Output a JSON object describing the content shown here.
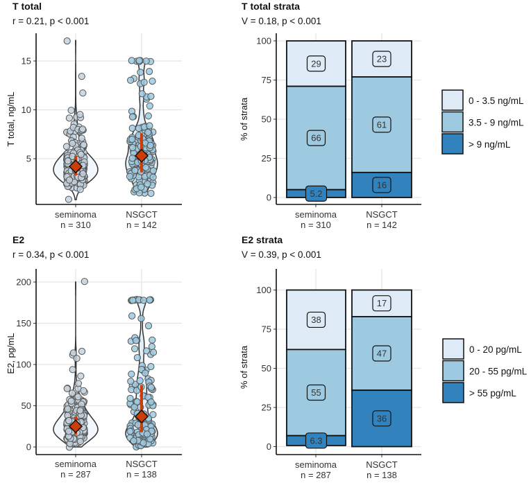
{
  "colors": {
    "light": "#deebf7",
    "mid": "#9ecae1",
    "dark": "#3182bd",
    "median": "#cc3d0a",
    "grid": "#e5e5e5"
  },
  "chart_data": [
    {
      "type": "violin",
      "title": "T total",
      "subtitle": "r = 0.21, p < 0.001",
      "ylabel": "T total, ng/mL",
      "yticks": [
        "5",
        "10",
        "15"
      ],
      "ylim": [
        0.3,
        17.5
      ],
      "categories": [
        {
          "label": "seminoma",
          "n_label": "n = 310",
          "n": 310,
          "median": 4.2,
          "q1": 3.3,
          "q3": 5.3,
          "min": 0.8,
          "max": 17.1
        },
        {
          "label": "NSGCT",
          "n_label": "n = 142",
          "n": 142,
          "median": 5.3,
          "q1": 3.6,
          "q3": 7.6,
          "min": 1.5,
          "max": 15.0
        }
      ]
    },
    {
      "type": "bar",
      "stacked": true,
      "title": "T total strata",
      "subtitle": "V = 0.18, p < 0.001",
      "ylabel": "% of strata",
      "yticks": [
        "0",
        "25",
        "50",
        "75",
        "100"
      ],
      "ylim": [
        0,
        100
      ],
      "legend": [
        "0 - 3.5 ng/mL",
        "3.5 - 9 ng/mL",
        "> 9 ng/mL"
      ],
      "legend_position": "right",
      "categories": [
        {
          "label": "seminoma",
          "n_label": "n = 310",
          "values": [
            29,
            66,
            5.2
          ],
          "labels": [
            "29",
            "66",
            "5.2"
          ]
        },
        {
          "label": "NSGCT",
          "n_label": "n = 142",
          "values": [
            23,
            61,
            16
          ],
          "labels": [
            "23",
            "61",
            "16"
          ]
        }
      ]
    },
    {
      "type": "violin",
      "title": "E2",
      "subtitle": "r = 0.34, p < 0.001",
      "ylabel": "E2, pg/mL",
      "yticks": [
        "0",
        "50",
        "100",
        "150",
        "200"
      ],
      "ylim": [
        -8,
        205
      ],
      "categories": [
        {
          "label": "seminoma",
          "n_label": "n = 287",
          "n": 287,
          "median": 25,
          "q1": 15,
          "q3": 37,
          "min": 0,
          "max": 200
        },
        {
          "label": "NSGCT",
          "n_label": "n = 138",
          "n": 138,
          "median": 37,
          "q1": 18,
          "q3": 75,
          "min": 0,
          "max": 178
        }
      ]
    },
    {
      "type": "bar",
      "stacked": true,
      "title": "E2 strata",
      "subtitle": "V = 0.39, p < 0.001",
      "ylabel": "% of strata",
      "yticks": [
        "0",
        "25",
        "50",
        "75",
        "100"
      ],
      "ylim": [
        0,
        100
      ],
      "legend": [
        "0 - 20 pg/mL",
        "20 - 55 pg/mL",
        "> 55 pg/mL"
      ],
      "legend_position": "right",
      "categories": [
        {
          "label": "seminoma",
          "n_label": "n = 287",
          "values": [
            38,
            55,
            6.3
          ],
          "labels": [
            "38",
            "55",
            "6.3"
          ]
        },
        {
          "label": "NSGCT",
          "n_label": "n = 138",
          "values": [
            17,
            47,
            36
          ],
          "labels": [
            "17",
            "47",
            "36"
          ]
        }
      ]
    }
  ]
}
